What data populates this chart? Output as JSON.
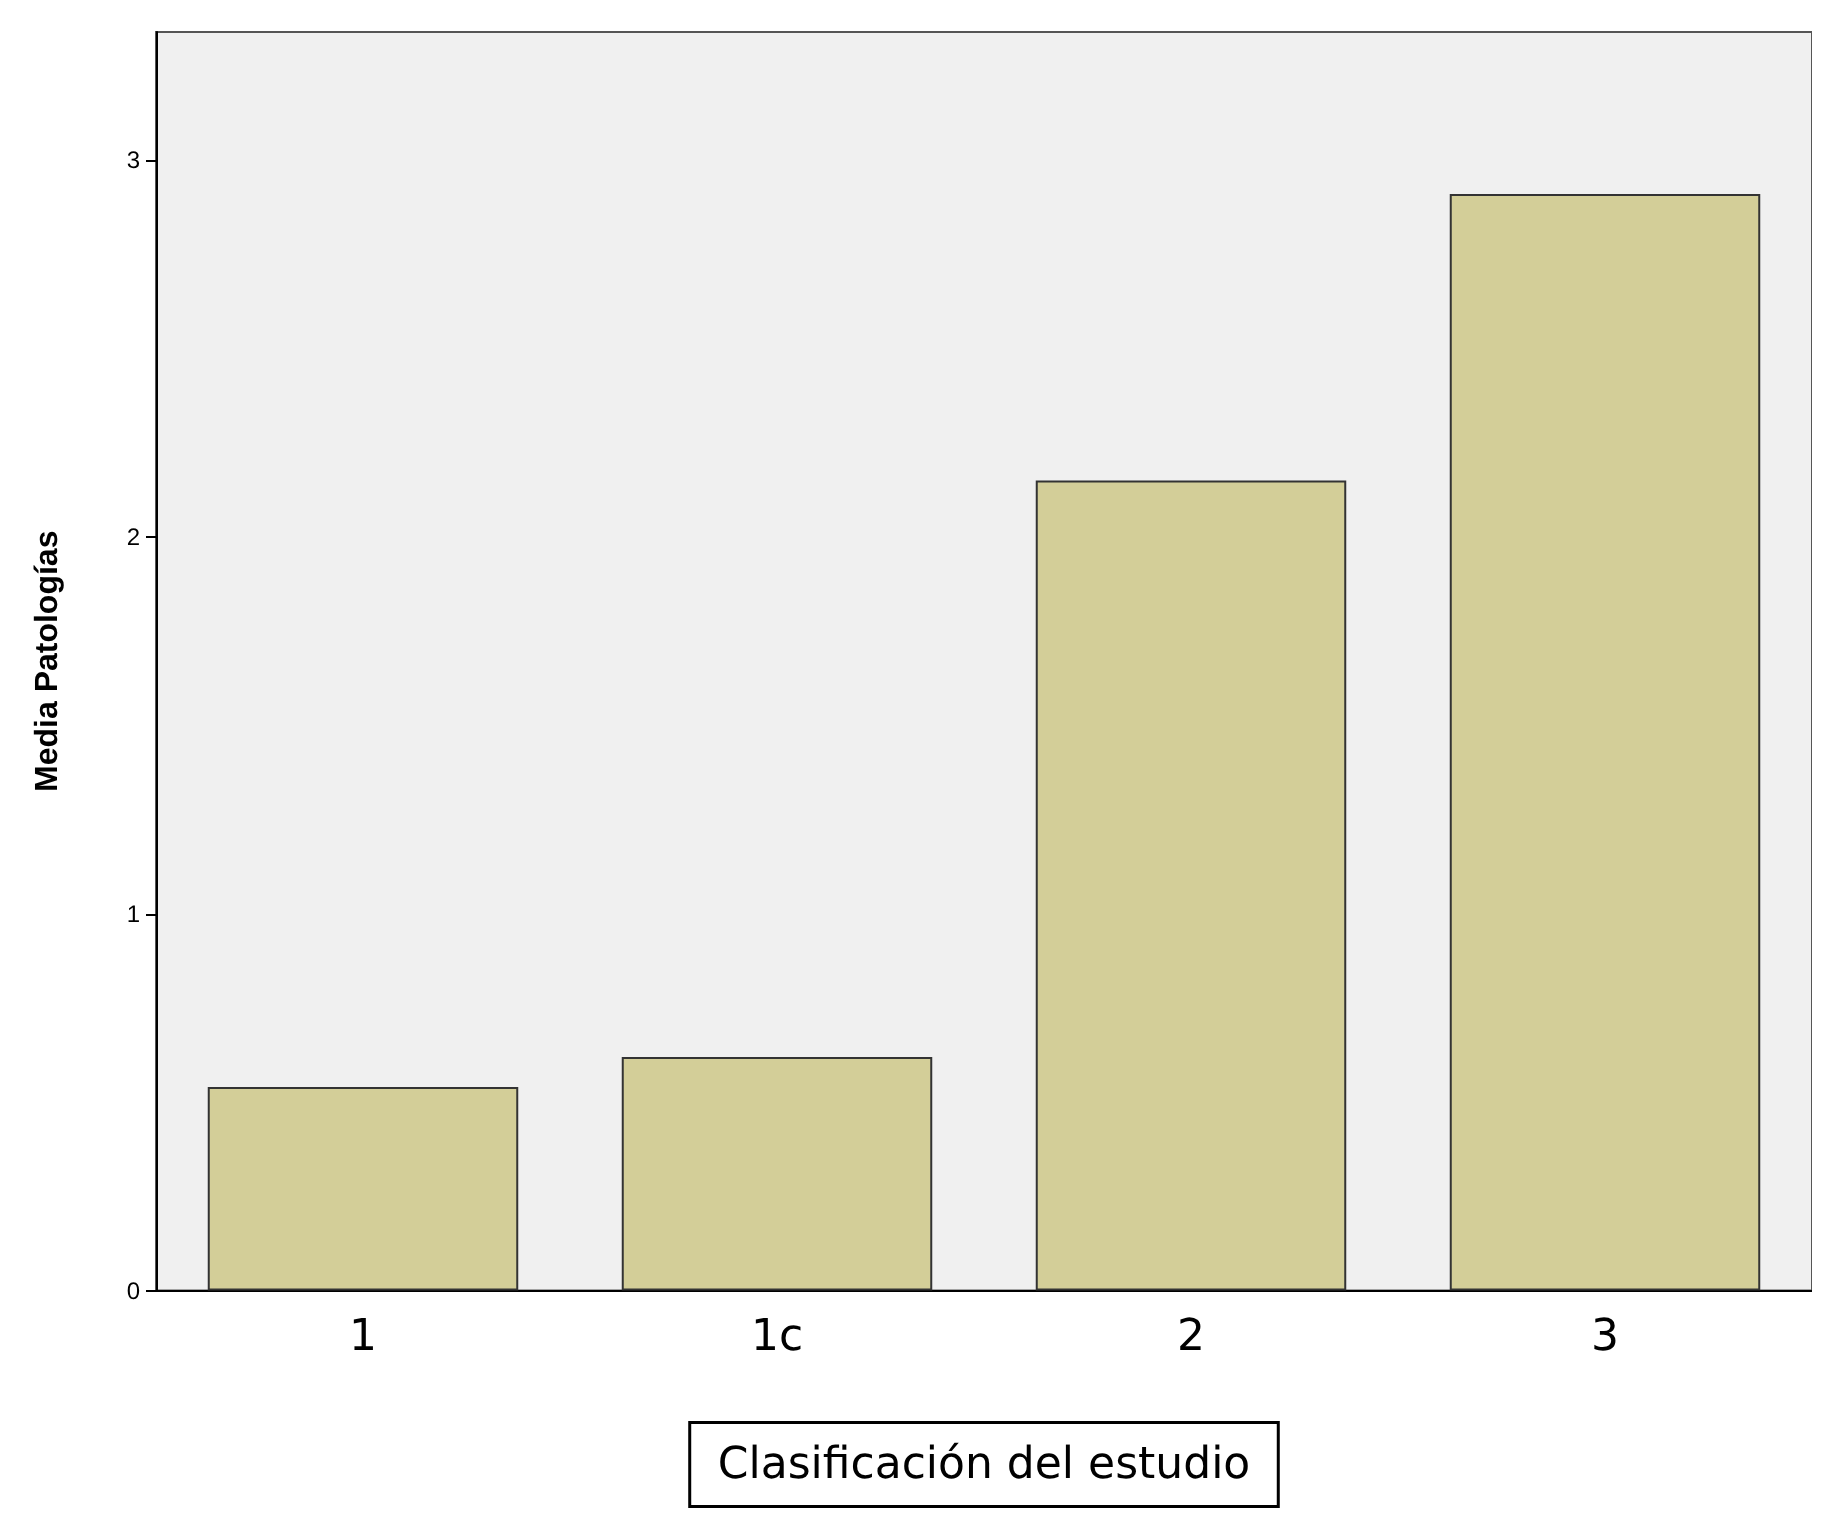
{
  "chart_data": {
    "type": "bar",
    "xlabel": "Clasificación del estudio",
    "ylabel": "Media Patologías",
    "categories": [
      "1",
      "1c",
      "2",
      "3"
    ],
    "values": [
      0.54,
      0.62,
      2.15,
      2.91
    ],
    "color": "#d3ce98",
    "ylim": [
      0,
      3.34
    ],
    "yticks": [
      0,
      1,
      2,
      3
    ],
    "grid": false
  }
}
